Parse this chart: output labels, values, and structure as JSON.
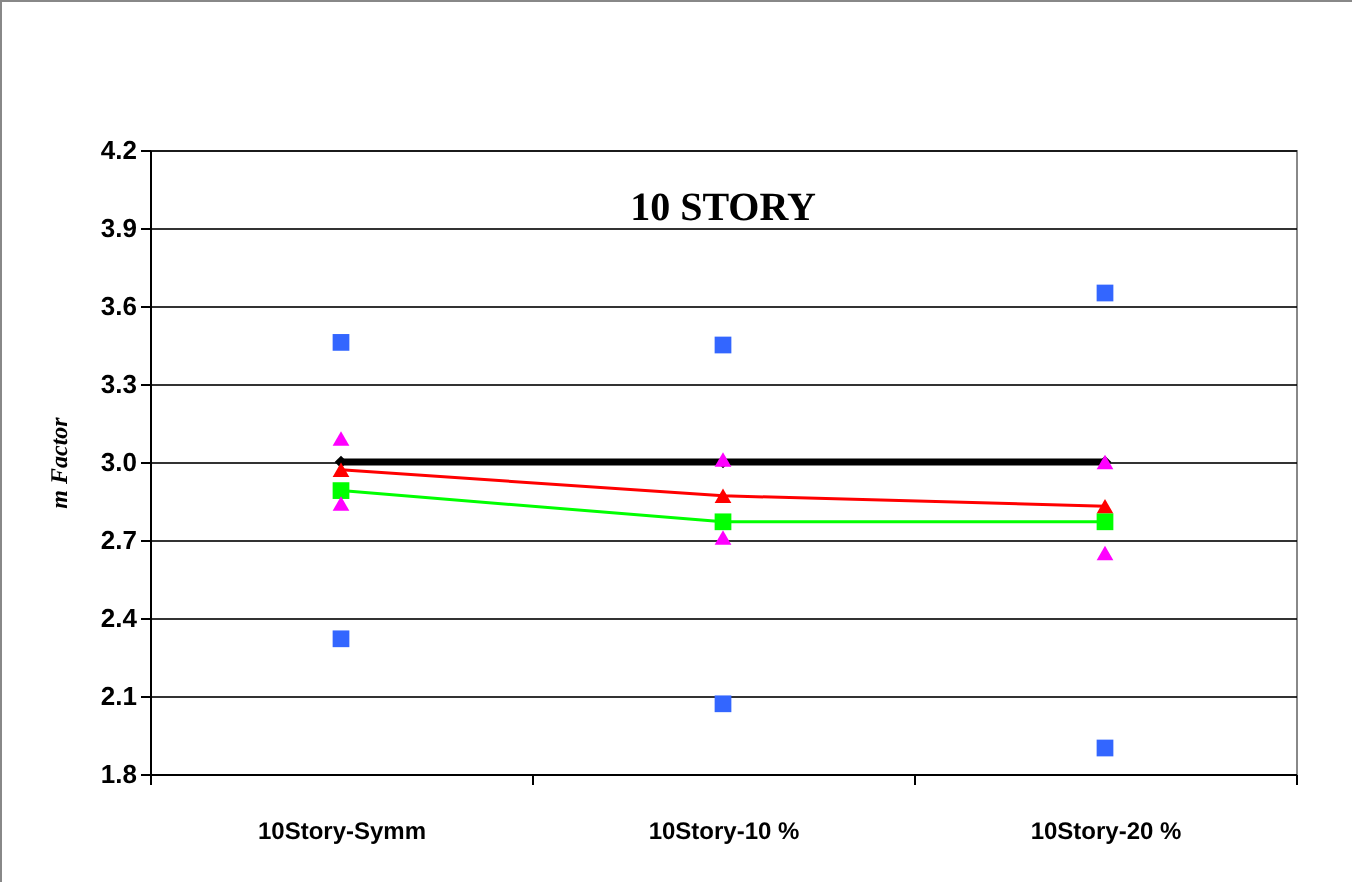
{
  "chart_data": {
    "type": "line",
    "title": "10 STORY",
    "ylabel": "m Factor",
    "categories": [
      "10Story-Symm",
      "10Story-10 %",
      "10Story-20 %"
    ],
    "series": [
      {
        "type": "line",
        "color": "#000000",
        "marker": "diamond",
        "values": [
          3.0,
          3.0,
          3.0
        ]
      },
      {
        "type": "line",
        "color": "#ff0000",
        "marker": "triangle",
        "values": [
          2.97,
          2.87,
          2.83
        ]
      },
      {
        "type": "line",
        "color": "#00ff00",
        "marker": "square",
        "values": [
          2.89,
          2.77,
          2.77
        ]
      },
      {
        "type": "scatter",
        "color": "#ff00ff",
        "marker": "triangle",
        "values": [
          3.09,
          3.01,
          3.0
        ]
      },
      {
        "type": "scatter",
        "color": "#ff00ff",
        "marker": "triangle",
        "values": [
          2.84,
          2.71,
          2.65
        ]
      },
      {
        "type": "scatter",
        "color": "#3366ff",
        "marker": "square",
        "values": [
          3.46,
          3.45,
          3.65
        ]
      },
      {
        "type": "scatter",
        "color": "#3366ff",
        "marker": "square",
        "values": [
          2.32,
          2.07,
          1.9
        ]
      }
    ],
    "ylim": [
      1.8,
      4.2
    ],
    "yticks": [
      1.8,
      2.1,
      2.4,
      2.7,
      {
        "value": 3,
        "label": "3.0"
      },
      3.3,
      3.6,
      3.9,
      4.2
    ],
    "grid": "y"
  }
}
